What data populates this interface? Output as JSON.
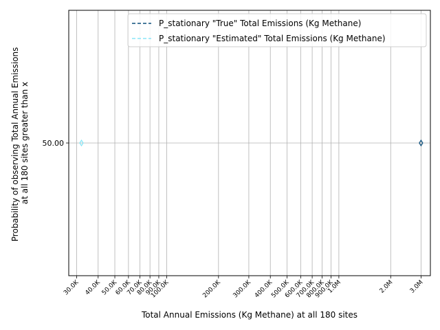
{
  "chart_data": {
    "type": "scatter",
    "xscale": "log",
    "xlim": [
      27000,
      3400000
    ],
    "ylim": [
      0,
      100
    ],
    "grid": true,
    "xlabel": "Total Annual Emissions (Kg Methane) at all 180 sites",
    "ylabel_lines": [
      "Probability of observing Total Annual Emissions",
      "at all 180 sites greater than x"
    ],
    "xticks": [
      {
        "value": 30000,
        "label": "30.0K"
      },
      {
        "value": 40000,
        "label": "40.0K"
      },
      {
        "value": 50000,
        "label": "50.0K"
      },
      {
        "value": 60000,
        "label": "60.0K"
      },
      {
        "value": 70000,
        "label": "70.0K"
      },
      {
        "value": 80000,
        "label": "80.0K"
      },
      {
        "value": 90000,
        "label": "90.0K"
      },
      {
        "value": 100000,
        "label": "100.0K"
      },
      {
        "value": 200000,
        "label": "200.0K"
      },
      {
        "value": 300000,
        "label": "300.0K"
      },
      {
        "value": 400000,
        "label": "400.0K"
      },
      {
        "value": 500000,
        "label": "500.0K"
      },
      {
        "value": 600000,
        "label": "600.0K"
      },
      {
        "value": 700000,
        "label": "700.0K"
      },
      {
        "value": 800000,
        "label": "800.0K"
      },
      {
        "value": 900000,
        "label": "900.0K"
      },
      {
        "value": 1000000,
        "label": "1.0M"
      },
      {
        "value": 2000000,
        "label": "2.0M"
      },
      {
        "value": 3000000,
        "label": "3.0M"
      }
    ],
    "yticks": [
      {
        "value": 50,
        "label": "50.00"
      }
    ],
    "legend_position": "upper-right",
    "series": [
      {
        "name": "P_stationary \"True\" Total Emissions (Kg Methane)",
        "color": "#0b4f7c",
        "linestyle": "dashed",
        "points": [
          {
            "x": 3000000,
            "y": 50
          }
        ]
      },
      {
        "name": "P_stationary \"Estimated\" Total Emissions (Kg Methane)",
        "color": "#88e6f7",
        "linestyle": "dashed",
        "points": [
          {
            "x": 32000,
            "y": 50
          }
        ]
      }
    ]
  }
}
